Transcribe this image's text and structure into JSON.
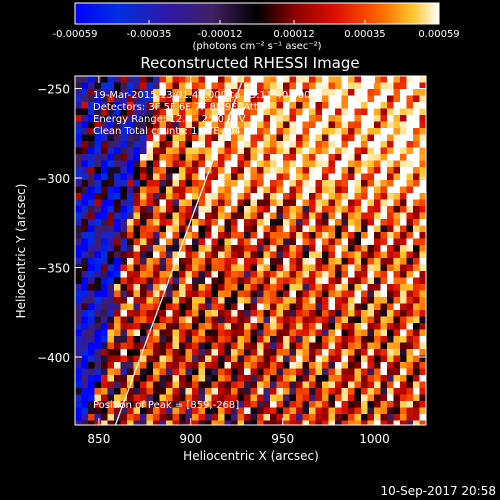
{
  "colorbar": {
    "ticks": [
      "-0.00059",
      "-0.00035",
      "-0.00012",
      "0.00012",
      "0.00035",
      "0.00059"
    ],
    "unit_label": "(photons cm⁻² s⁻¹ asec⁻²)",
    "range": [
      -0.00059,
      0.00059
    ]
  },
  "chart_data": {
    "type": "heatmap",
    "title": "Reconstructed RHESSI Image",
    "xlabel": "Heliocentric X (arcsec)",
    "ylabel": "Heliocentric Y (arcsec)",
    "xlim": [
      837,
      1028
    ],
    "ylim": [
      -438,
      -243
    ],
    "xticks": [
      850,
      900,
      950,
      1000
    ],
    "yticks": [
      -250,
      -300,
      -350,
      -400
    ],
    "xtick_labels": [
      "850",
      "900",
      "950",
      "1000"
    ],
    "ytick_labels": [
      "−250",
      "−300",
      "−350",
      "−400"
    ],
    "limb_line": {
      "x": [
        859,
        929
      ],
      "y": [
        -438,
        -243
      ]
    },
    "info_lines": [
      "19-Mar-2015 13:01:40.000 to 13:11:40.000",
      "Detectors: 3F 5F 6F 7F 8F 9F, Att 0",
      "Energy Range: 12.0 - 25.0 keV",
      "Clean   Total counts: 1.37E+04"
    ],
    "peak_text": "Position of Peak = [859,-268]",
    "peak_position": [
      859,
      -268
    ]
  },
  "timestamp": "10-Sep-2017 20:58"
}
